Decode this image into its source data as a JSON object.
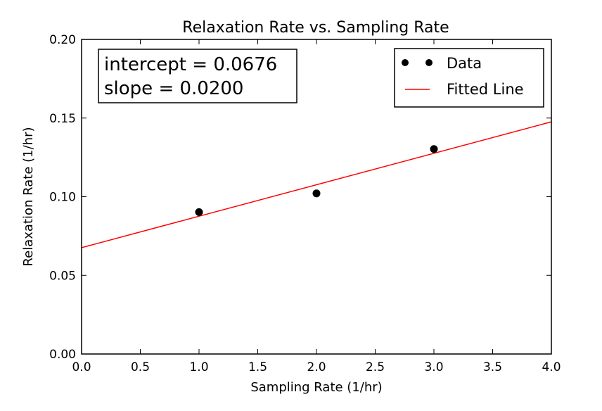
{
  "chart_data": {
    "type": "scatter",
    "title": "Relaxation Rate vs. Sampling Rate",
    "xlabel": "Sampling Rate (1/hr)",
    "ylabel": "Relaxation Rate (1/hr)",
    "xlim": [
      0.0,
      4.0
    ],
    "ylim": [
      0.0,
      0.2
    ],
    "xticks": [
      "0.0",
      "0.5",
      "1.0",
      "1.5",
      "2.0",
      "2.5",
      "3.0",
      "3.5",
      "4.0"
    ],
    "yticks": [
      "0.00",
      "0.05",
      "0.10",
      "0.15",
      "0.20"
    ],
    "grid": false,
    "legend_position": "top-right",
    "series": [
      {
        "name": "Data",
        "kind": "points",
        "color": "#000000",
        "x": [
          1.0,
          2.0,
          3.0
        ],
        "y": [
          0.0902,
          0.1021,
          0.1303
        ]
      },
      {
        "name": "Fitted Line",
        "kind": "line",
        "color": "#ff0000",
        "x": [
          0.0,
          4.0
        ],
        "y": [
          0.0676,
          0.1476
        ]
      }
    ],
    "annotation": {
      "lines": [
        "intercept = 0.0676",
        "slope = 0.0200"
      ]
    }
  }
}
